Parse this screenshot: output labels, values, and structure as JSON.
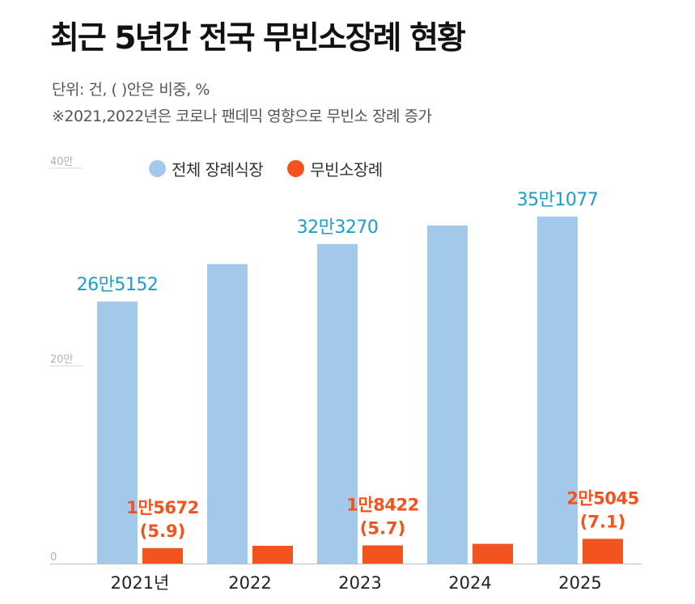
{
  "title": "최근 5년간 전국 무빈소장례 현황",
  "subtitle": "단위: 건, ( )안은 비중, %",
  "note": "※2021,2022년은 코로나 팬데믹 영향으로 무빈소 장례 증가",
  "colors": {
    "total": "#a3c9ea",
    "nobinso": "#f2531f",
    "total_label": "#1a9ec9",
    "nobinso_label": "#f2531f"
  },
  "chart_data": {
    "type": "bar",
    "categories": [
      "2021년",
      "2022",
      "2023",
      "2024",
      "2025"
    ],
    "ylim": [
      0,
      400000
    ],
    "y_ticks": [
      {
        "value": 0,
        "label": "0"
      },
      {
        "value": 200000,
        "label": "20만"
      },
      {
        "value": 400000,
        "label": "40만"
      }
    ],
    "legend_position": "top",
    "series": [
      {
        "name": "전체 장례식장",
        "values": [
          265152,
          303000,
          323270,
          342000,
          351077
        ],
        "labels": [
          "26만5152",
          "",
          "32만3270",
          "",
          "35만1077"
        ]
      },
      {
        "name": "무빈소장례",
        "values": [
          15672,
          18000,
          18422,
          20000,
          25045
        ],
        "labels": [
          "1만5672",
          "",
          "1만8422",
          "",
          "2만5045"
        ],
        "share_labels": [
          "(5.9)",
          "",
          "(5.7)",
          "",
          "(7.1)"
        ]
      }
    ]
  }
}
